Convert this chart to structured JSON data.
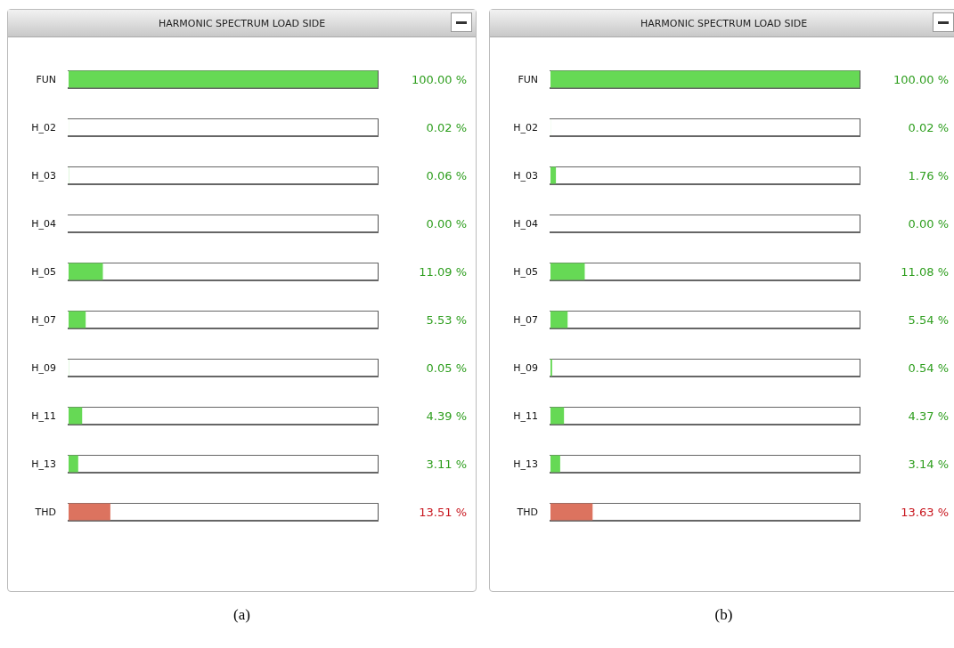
{
  "chart_data": [
    {
      "type": "bar",
      "orientation": "horizontal",
      "title": "HARMONIC SPECTRUM LOAD SIDE",
      "categories": [
        "FUN",
        "H_02",
        "H_03",
        "H_04",
        "H_05",
        "H_07",
        "H_09",
        "H_11",
        "H_13",
        "THD"
      ],
      "values": [
        100,
        0.02,
        0.06,
        0,
        11.09,
        5.53,
        0.05,
        4.39,
        3.11,
        13.51
      ],
      "value_labels": [
        "100.00 %",
        "0.02 %",
        "0.06 %",
        "0.00 %",
        "11.09 %",
        "5.53 %",
        "0.05 %",
        "4.39 %",
        "3.11 %",
        "13.51 %"
      ],
      "colors": [
        "#66d955",
        "#66d955",
        "#66d955",
        "#66d955",
        "#66d955",
        "#66d955",
        "#66d955",
        "#66d955",
        "#66d955",
        "#dc735f"
      ],
      "xlim": [
        0,
        100
      ],
      "tick_labels": "y",
      "annotations": [
        "(a)"
      ]
    },
    {
      "type": "bar",
      "orientation": "horizontal",
      "title": "HARMONIC SPECTRUM LOAD SIDE",
      "categories": [
        "FUN",
        "H_02",
        "H_03",
        "H_04",
        "H_05",
        "H_07",
        "H_09",
        "H_11",
        "H_13",
        "THD"
      ],
      "values": [
        100,
        0.02,
        1.76,
        0,
        11.08,
        5.54,
        0.54,
        4.37,
        3.14,
        13.63
      ],
      "value_labels": [
        "100.00 %",
        "0.02 %",
        "1.76 %",
        "0.00 %",
        "11.08 %",
        "5.54 %",
        "0.54 %",
        "4.37 %",
        "3.14 %",
        "13.63 %"
      ],
      "colors": [
        "#66d955",
        "#66d955",
        "#66d955",
        "#66d955",
        "#66d955",
        "#66d955",
        "#66d955",
        "#66d955",
        "#66d955",
        "#dc735f"
      ],
      "xlim": [
        0,
        100
      ],
      "tick_labels": "y",
      "annotations": [
        "(b)"
      ]
    }
  ]
}
